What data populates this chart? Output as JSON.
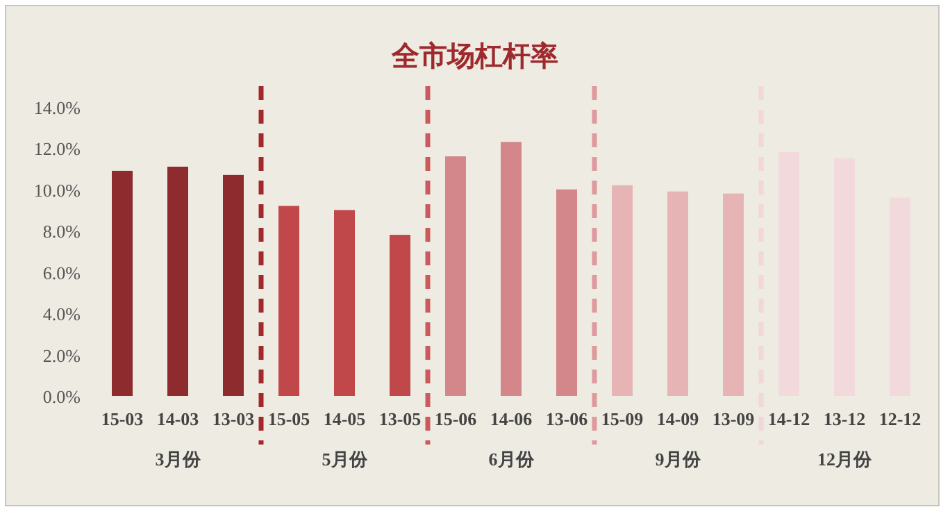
{
  "chart_data": {
    "type": "bar",
    "title": "全市场杠杆率",
    "categories": [
      "15-03",
      "14-03",
      "13-03",
      "15-05",
      "14-05",
      "13-05",
      "15-06",
      "14-06",
      "13-06",
      "15-09",
      "14-09",
      "13-09",
      "14-12",
      "13-12",
      "12-12"
    ],
    "values": [
      10.9,
      11.1,
      10.7,
      9.2,
      9.0,
      7.8,
      11.6,
      12.3,
      10.0,
      10.2,
      9.9,
      9.8,
      11.8,
      11.5,
      9.6
    ],
    "colors": [
      "#8e2b2f",
      "#8e2b2f",
      "#8e2b2f",
      "#c0474a",
      "#c0474a",
      "#c0474a",
      "#d4878a",
      "#d4878a",
      "#d4878a",
      "#e7b4b6",
      "#e7b4b6",
      "#e7b4b6",
      "#f2dadc",
      "#f2dadc",
      "#f2dadc"
    ],
    "ylim": [
      0,
      15
    ],
    "yticks": [
      {
        "value": 0,
        "label": "0.0%"
      },
      {
        "value": 2,
        "label": "2.0%"
      },
      {
        "value": 4,
        "label": "4.0%"
      },
      {
        "value": 6,
        "label": "6.0%"
      },
      {
        "value": 8,
        "label": "8.0%"
      },
      {
        "value": 10,
        "label": "10.0%"
      },
      {
        "value": 12,
        "label": "12.0%"
      },
      {
        "value": 14,
        "label": "14.0%"
      }
    ],
    "ref_lines": [
      {
        "axis": "x",
        "value": "13-03",
        "color": "#a3282c",
        "line_style": "dashed"
      },
      {
        "axis": "x",
        "value": "13-05",
        "color": "#cc5a5d",
        "line_style": "dashed"
      },
      {
        "axis": "x",
        "value": "13-06",
        "color": "#df9a9d",
        "line_style": "dashed"
      },
      {
        "axis": "x",
        "value": "13-09",
        "color": "#f3d6d8",
        "line_style": "dashed"
      }
    ],
    "annotations": [
      "3月份",
      "5月份",
      "6月份",
      "9月份",
      "12月份"
    ],
    "grid": false
  }
}
